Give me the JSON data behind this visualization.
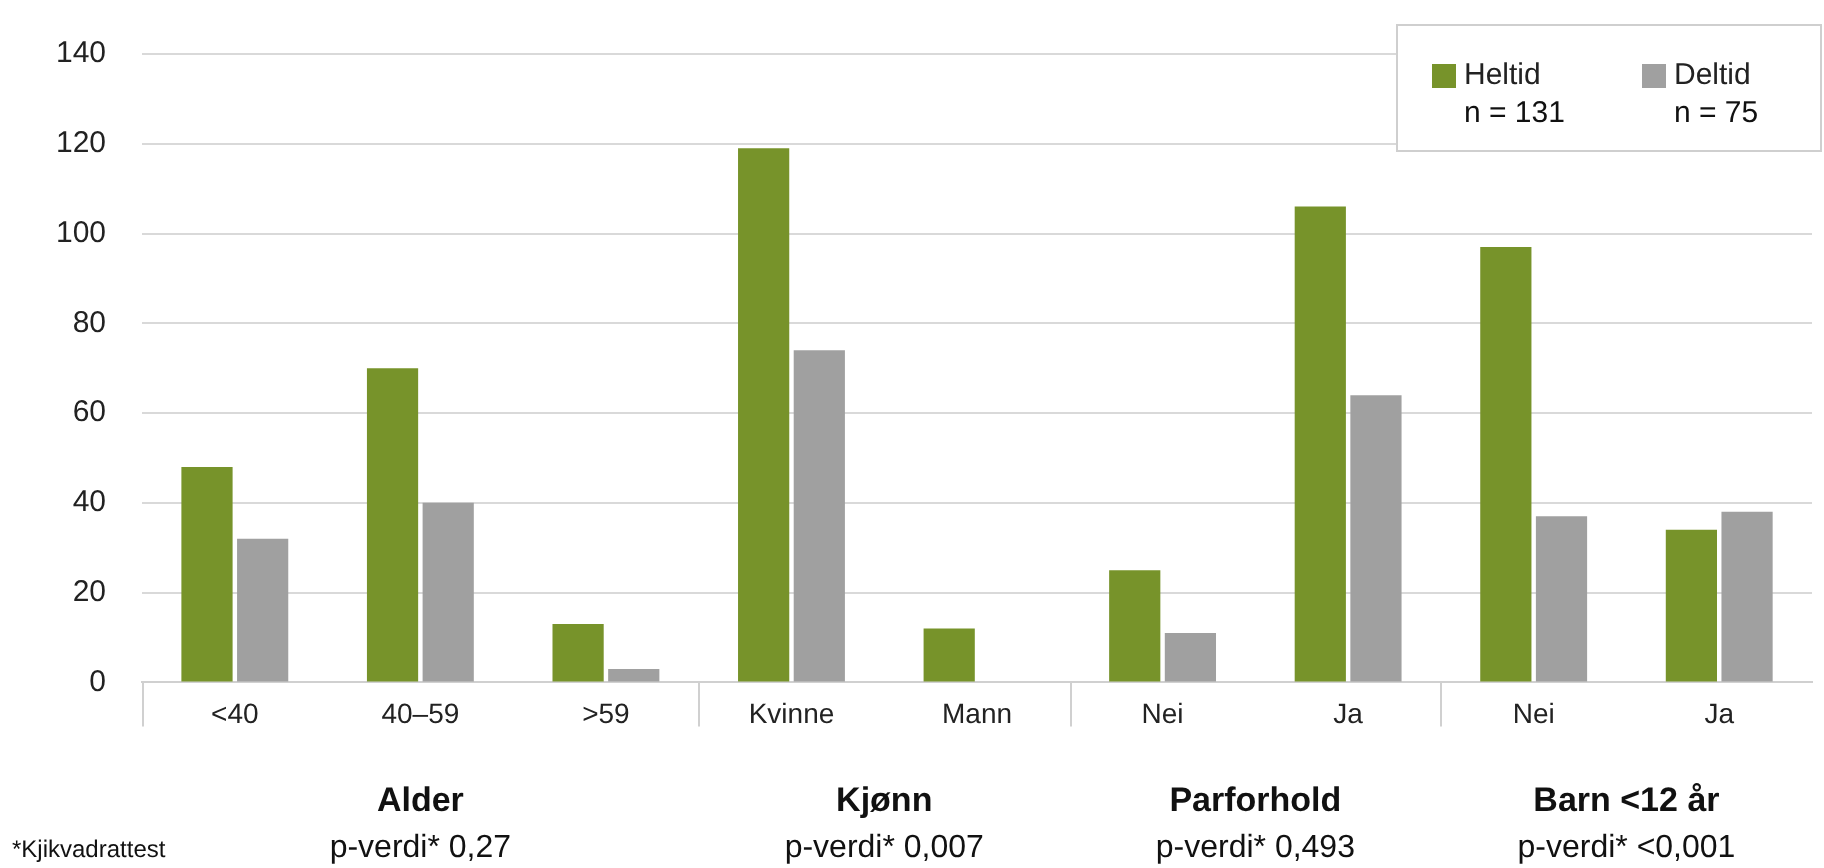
{
  "chart_data": {
    "type": "bar",
    "categories": [
      "<40",
      "40–59",
      ">59",
      "Kvinne",
      "Mann",
      "Nei",
      "Ja",
      "Nei",
      "Ja"
    ],
    "series": [
      {
        "name": "Heltid",
        "color": "#77932a",
        "values": [
          48,
          70,
          13,
          119,
          12,
          25,
          106,
          97,
          34
        ]
      },
      {
        "name": "Deltid",
        "color": "#a0a0a0",
        "values": [
          32,
          40,
          3,
          74,
          0,
          11,
          64,
          37,
          38
        ]
      }
    ],
    "ylim": [
      0,
      140
    ],
    "yticks": [
      0,
      20,
      40,
      60,
      80,
      100,
      120,
      140
    ],
    "grid": "y",
    "legend": "top right",
    "annotations": [
      "n = 131",
      "n = 75",
      "Alder",
      "p-verdi* 0,27",
      "Kjønn",
      "p-verdi* 0,007",
      "Parforhold",
      "p-verdi* 0,493",
      "Barn <12 år",
      "p-verdi* <0,001",
      "*Kjikvadrattest"
    ]
  }
}
